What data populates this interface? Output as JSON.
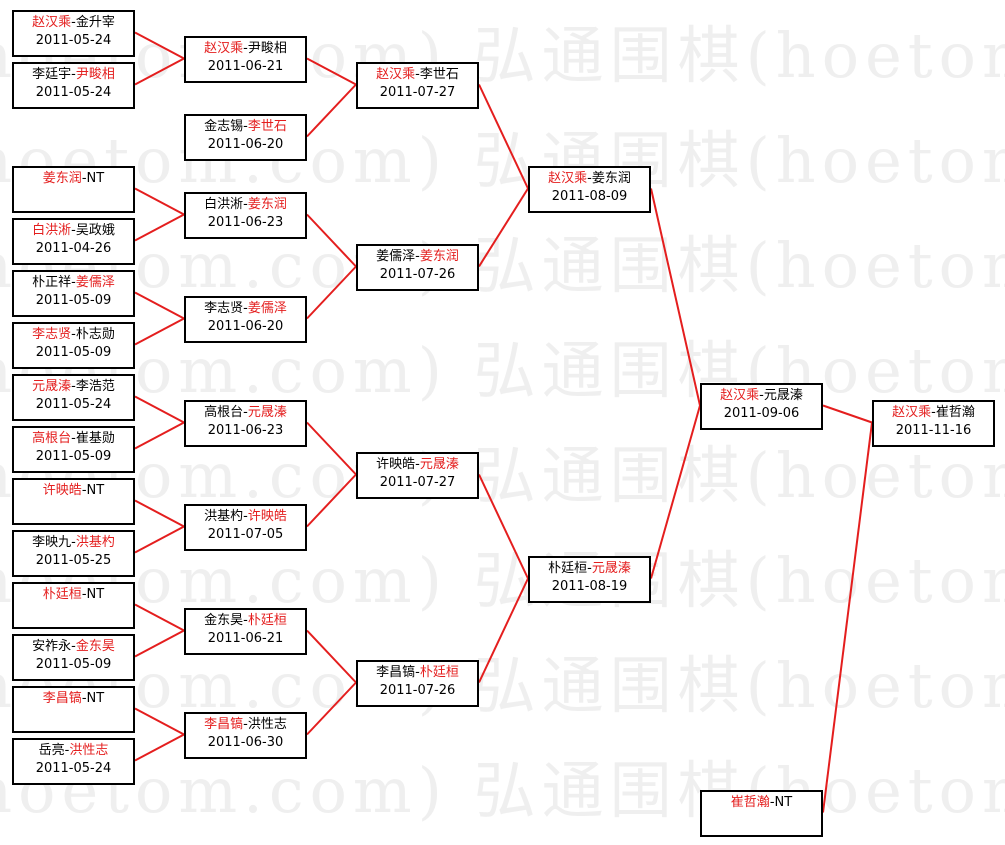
{
  "watermark": "弘通围棋(hoetom.com)",
  "colors": {
    "winner": "#e41e1e",
    "connector": "#e41e1e",
    "box_border": "#000000"
  },
  "rounds": [
    {
      "matches": [
        {
          "p1": "赵汉乘",
          "p2": "金升宰",
          "winner": 1,
          "date": "2011-05-24"
        },
        {
          "p1": "李廷宇",
          "p2": "尹畯相",
          "winner": 2,
          "date": "2011-05-24"
        },
        {
          "p1": "姜东润",
          "p2": "NT",
          "winner": 1,
          "date": ""
        },
        {
          "p1": "白洪淅",
          "p2": "吴政娥",
          "winner": 1,
          "date": "2011-04-26"
        },
        {
          "p1": "朴正祥",
          "p2": "姜儒泽",
          "winner": 2,
          "date": "2011-05-09"
        },
        {
          "p1": "李志贤",
          "p2": "朴志勋",
          "winner": 1,
          "date": "2011-05-09"
        },
        {
          "p1": "元晟溱",
          "p2": "李浩范",
          "winner": 1,
          "date": "2011-05-24"
        },
        {
          "p1": "高根台",
          "p2": "崔基勋",
          "winner": 1,
          "date": "2011-05-09"
        },
        {
          "p1": "许映皓",
          "p2": "NT",
          "winner": 1,
          "date": ""
        },
        {
          "p1": "李映九",
          "p2": "洪基杓",
          "winner": 2,
          "date": "2011-05-25"
        },
        {
          "p1": "朴廷桓",
          "p2": "NT",
          "winner": 1,
          "date": ""
        },
        {
          "p1": "安祚永",
          "p2": "金东昊",
          "winner": 2,
          "date": "2011-05-09"
        },
        {
          "p1": "李昌镐",
          "p2": "NT",
          "winner": 1,
          "date": ""
        },
        {
          "p1": "岳亮",
          "p2": "洪性志",
          "winner": 2,
          "date": "2011-05-24"
        }
      ]
    },
    {
      "matches": [
        {
          "p1": "赵汉乘",
          "p2": "尹畯相",
          "winner": 1,
          "date": "2011-06-21"
        },
        {
          "p1": "金志锡",
          "p2": "李世石",
          "winner": 2,
          "date": "2011-06-20"
        },
        {
          "p1": "白洪淅",
          "p2": "姜东润",
          "winner": 2,
          "date": "2011-06-23"
        },
        {
          "p1": "李志贤",
          "p2": "姜儒泽",
          "winner": 2,
          "date": "2011-06-20"
        },
        {
          "p1": "高根台",
          "p2": "元晟溱",
          "winner": 2,
          "date": "2011-06-23"
        },
        {
          "p1": "洪基杓",
          "p2": "许映皓",
          "winner": 2,
          "date": "2011-07-05"
        },
        {
          "p1": "金东昊",
          "p2": "朴廷桓",
          "winner": 2,
          "date": "2011-06-21"
        },
        {
          "p1": "李昌镐",
          "p2": "洪性志",
          "winner": 1,
          "date": "2011-06-30"
        }
      ]
    },
    {
      "matches": [
        {
          "p1": "赵汉乘",
          "p2": "李世石",
          "winner": 1,
          "date": "2011-07-27"
        },
        {
          "p1": "姜儒泽",
          "p2": "姜东润",
          "winner": 2,
          "date": "2011-07-26"
        },
        {
          "p1": "许映皓",
          "p2": "元晟溱",
          "winner": 2,
          "date": "2011-07-27"
        },
        {
          "p1": "李昌镐",
          "p2": "朴廷桓",
          "winner": 2,
          "date": "2011-07-26"
        }
      ]
    },
    {
      "matches": [
        {
          "p1": "赵汉乘",
          "p2": "姜东润",
          "winner": 1,
          "date": "2011-08-09"
        },
        {
          "p1": "朴廷桓",
          "p2": "元晟溱",
          "winner": 2,
          "date": "2011-08-19"
        }
      ]
    },
    {
      "matches": [
        {
          "p1": "赵汉乘",
          "p2": "元晟溱",
          "winner": 1,
          "date": "2011-09-06"
        },
        {
          "p1": "崔哲瀚",
          "p2": "NT",
          "winner": 1,
          "date": ""
        }
      ]
    },
    {
      "matches": [
        {
          "p1": "赵汉乘",
          "p2": "崔哲瀚",
          "winner": 1,
          "date": "2011-11-16"
        }
      ]
    }
  ]
}
